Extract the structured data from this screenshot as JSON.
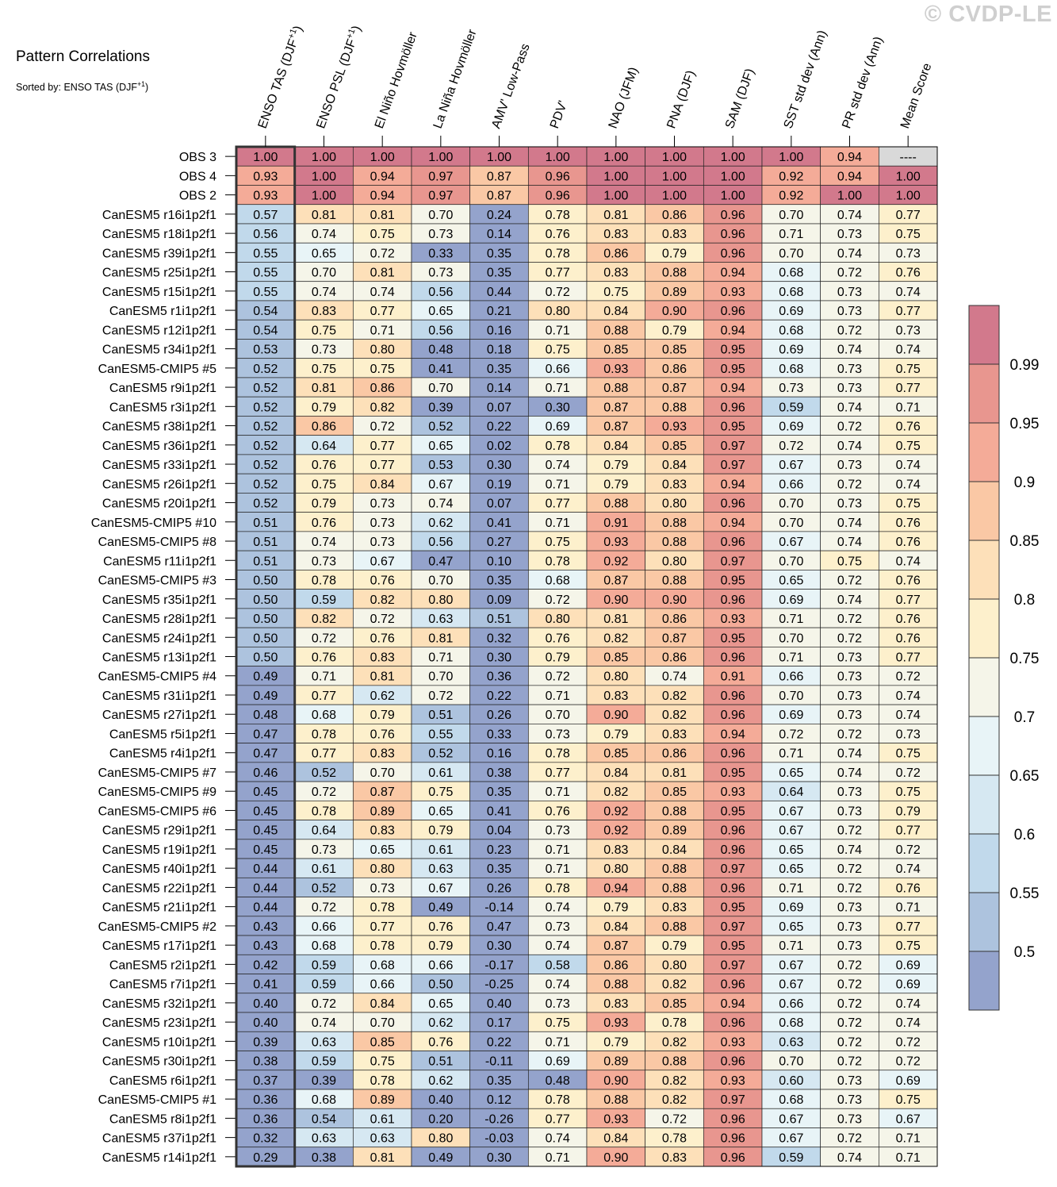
{
  "watermark": "© CVDP-LE",
  "chart_data": {
    "type": "heatmap",
    "title": "Pattern Correlations",
    "subtitle": "Sorted by: ENSO TAS (DJF+1)",
    "columns": [
      "ENSO TAS (DJF+1)",
      "ENSO PSL (DJF+1)",
      "El Niño Hovmöller",
      "La Niña Hovmöller",
      "AMV' Low-Pass",
      "PDV'",
      "NAO (JFM)",
      "PNA (DJF)",
      "SAM (DJF)",
      "SST std dev (Ann)",
      "PR std dev (Ann)",
      "Mean Score"
    ],
    "highlighted_column": "ENSO TAS (DJF+1)",
    "rows": [
      {
        "label": "OBS 3",
        "values": [
          "1.00",
          "1.00",
          "1.00",
          "1.00",
          "1.00",
          "1.00",
          "1.00",
          "1.00",
          "1.00",
          "1.00",
          "0.94",
          "----"
        ]
      },
      {
        "label": "OBS 4",
        "values": [
          "0.93",
          "1.00",
          "0.94",
          "0.97",
          "0.87",
          "0.96",
          "1.00",
          "1.00",
          "1.00",
          "0.92",
          "0.94",
          "1.00"
        ]
      },
      {
        "label": "OBS 2",
        "values": [
          "0.93",
          "1.00",
          "0.94",
          "0.97",
          "0.87",
          "0.96",
          "1.00",
          "1.00",
          "1.00",
          "0.92",
          "1.00",
          "1.00"
        ]
      },
      {
        "label": "CanESM5 r16i1p2f1",
        "values": [
          "0.57",
          "0.81",
          "0.81",
          "0.70",
          "0.24",
          "0.78",
          "0.81",
          "0.86",
          "0.96",
          "0.70",
          "0.74",
          "0.77"
        ]
      },
      {
        "label": "CanESM5 r18i1p2f1",
        "values": [
          "0.56",
          "0.74",
          "0.75",
          "0.73",
          "0.14",
          "0.76",
          "0.83",
          "0.83",
          "0.96",
          "0.71",
          "0.73",
          "0.75"
        ]
      },
      {
        "label": "CanESM5 r39i1p2f1",
        "values": [
          "0.55",
          "0.65",
          "0.72",
          "0.33",
          "0.35",
          "0.78",
          "0.86",
          "0.79",
          "0.96",
          "0.70",
          "0.74",
          "0.73"
        ]
      },
      {
        "label": "CanESM5 r25i1p2f1",
        "values": [
          "0.55",
          "0.70",
          "0.81",
          "0.73",
          "0.35",
          "0.77",
          "0.83",
          "0.88",
          "0.94",
          "0.68",
          "0.72",
          "0.76"
        ]
      },
      {
        "label": "CanESM5 r15i1p2f1",
        "values": [
          "0.55",
          "0.74",
          "0.74",
          "0.56",
          "0.44",
          "0.72",
          "0.75",
          "0.89",
          "0.93",
          "0.68",
          "0.73",
          "0.74"
        ]
      },
      {
        "label": "CanESM5 r1i1p2f1",
        "values": [
          "0.54",
          "0.83",
          "0.77",
          "0.65",
          "0.21",
          "0.80",
          "0.84",
          "0.90",
          "0.96",
          "0.69",
          "0.73",
          "0.77"
        ]
      },
      {
        "label": "CanESM5 r12i1p2f1",
        "values": [
          "0.54",
          "0.75",
          "0.71",
          "0.56",
          "0.16",
          "0.71",
          "0.88",
          "0.79",
          "0.94",
          "0.68",
          "0.72",
          "0.73"
        ]
      },
      {
        "label": "CanESM5 r34i1p2f1",
        "values": [
          "0.53",
          "0.73",
          "0.80",
          "0.48",
          "0.18",
          "0.75",
          "0.85",
          "0.85",
          "0.95",
          "0.69",
          "0.74",
          "0.74"
        ]
      },
      {
        "label": "CanESM5-CMIP5 #5",
        "values": [
          "0.52",
          "0.75",
          "0.75",
          "0.41",
          "0.35",
          "0.66",
          "0.93",
          "0.86",
          "0.95",
          "0.68",
          "0.73",
          "0.75"
        ]
      },
      {
        "label": "CanESM5 r9i1p2f1",
        "values": [
          "0.52",
          "0.81",
          "0.86",
          "0.70",
          "0.14",
          "0.71",
          "0.88",
          "0.87",
          "0.94",
          "0.73",
          "0.73",
          "0.77"
        ]
      },
      {
        "label": "CanESM5 r3i1p2f1",
        "values": [
          "0.52",
          "0.79",
          "0.82",
          "0.39",
          "0.07",
          "0.30",
          "0.87",
          "0.88",
          "0.96",
          "0.59",
          "0.74",
          "0.71"
        ]
      },
      {
        "label": "CanESM5 r38i1p2f1",
        "values": [
          "0.52",
          "0.86",
          "0.72",
          "0.52",
          "0.22",
          "0.69",
          "0.87",
          "0.93",
          "0.95",
          "0.69",
          "0.72",
          "0.76"
        ]
      },
      {
        "label": "CanESM5 r36i1p2f1",
        "values": [
          "0.52",
          "0.64",
          "0.77",
          "0.65",
          "0.02",
          "0.78",
          "0.84",
          "0.85",
          "0.97",
          "0.72",
          "0.74",
          "0.75"
        ]
      },
      {
        "label": "CanESM5 r33i1p2f1",
        "values": [
          "0.52",
          "0.76",
          "0.77",
          "0.53",
          "0.30",
          "0.74",
          "0.79",
          "0.84",
          "0.97",
          "0.67",
          "0.73",
          "0.74"
        ]
      },
      {
        "label": "CanESM5 r26i1p2f1",
        "values": [
          "0.52",
          "0.75",
          "0.84",
          "0.67",
          "0.19",
          "0.71",
          "0.79",
          "0.83",
          "0.94",
          "0.66",
          "0.72",
          "0.74"
        ]
      },
      {
        "label": "CanESM5 r20i1p2f1",
        "values": [
          "0.52",
          "0.79",
          "0.73",
          "0.74",
          "0.07",
          "0.77",
          "0.88",
          "0.80",
          "0.96",
          "0.70",
          "0.73",
          "0.75"
        ]
      },
      {
        "label": "CanESM5-CMIP5 #10",
        "values": [
          "0.51",
          "0.76",
          "0.73",
          "0.62",
          "0.41",
          "0.71",
          "0.91",
          "0.88",
          "0.94",
          "0.70",
          "0.74",
          "0.76"
        ]
      },
      {
        "label": "CanESM5-CMIP5 #8",
        "values": [
          "0.51",
          "0.74",
          "0.73",
          "0.56",
          "0.27",
          "0.75",
          "0.93",
          "0.88",
          "0.96",
          "0.67",
          "0.74",
          "0.76"
        ]
      },
      {
        "label": "CanESM5 r11i1p2f1",
        "values": [
          "0.51",
          "0.73",
          "0.67",
          "0.47",
          "0.10",
          "0.78",
          "0.92",
          "0.80",
          "0.97",
          "0.70",
          "0.75",
          "0.74"
        ]
      },
      {
        "label": "CanESM5-CMIP5 #3",
        "values": [
          "0.50",
          "0.78",
          "0.76",
          "0.70",
          "0.35",
          "0.68",
          "0.87",
          "0.88",
          "0.95",
          "0.65",
          "0.72",
          "0.76"
        ]
      },
      {
        "label": "CanESM5 r35i1p2f1",
        "values": [
          "0.50",
          "0.59",
          "0.82",
          "0.80",
          "0.09",
          "0.72",
          "0.90",
          "0.90",
          "0.96",
          "0.69",
          "0.74",
          "0.77"
        ]
      },
      {
        "label": "CanESM5 r28i1p2f1",
        "values": [
          "0.50",
          "0.82",
          "0.72",
          "0.63",
          "0.51",
          "0.80",
          "0.81",
          "0.86",
          "0.93",
          "0.71",
          "0.72",
          "0.76"
        ]
      },
      {
        "label": "CanESM5 r24i1p2f1",
        "values": [
          "0.50",
          "0.72",
          "0.76",
          "0.81",
          "0.32",
          "0.76",
          "0.82",
          "0.87",
          "0.95",
          "0.70",
          "0.72",
          "0.76"
        ]
      },
      {
        "label": "CanESM5 r13i1p2f1",
        "values": [
          "0.50",
          "0.76",
          "0.83",
          "0.71",
          "0.30",
          "0.79",
          "0.85",
          "0.86",
          "0.96",
          "0.71",
          "0.73",
          "0.77"
        ]
      },
      {
        "label": "CanESM5-CMIP5 #4",
        "values": [
          "0.49",
          "0.71",
          "0.81",
          "0.70",
          "0.36",
          "0.72",
          "0.80",
          "0.74",
          "0.91",
          "0.66",
          "0.73",
          "0.72"
        ]
      },
      {
        "label": "CanESM5 r31i1p2f1",
        "values": [
          "0.49",
          "0.77",
          "0.62",
          "0.72",
          "0.22",
          "0.71",
          "0.83",
          "0.82",
          "0.96",
          "0.70",
          "0.73",
          "0.74"
        ]
      },
      {
        "label": "CanESM5 r27i1p2f1",
        "values": [
          "0.48",
          "0.68",
          "0.79",
          "0.51",
          "0.26",
          "0.70",
          "0.90",
          "0.82",
          "0.96",
          "0.69",
          "0.73",
          "0.74"
        ]
      },
      {
        "label": "CanESM5 r5i1p2f1",
        "values": [
          "0.47",
          "0.78",
          "0.76",
          "0.55",
          "0.33",
          "0.73",
          "0.79",
          "0.83",
          "0.94",
          "0.72",
          "0.72",
          "0.73"
        ]
      },
      {
        "label": "CanESM5 r4i1p2f1",
        "values": [
          "0.47",
          "0.77",
          "0.83",
          "0.52",
          "0.16",
          "0.78",
          "0.85",
          "0.86",
          "0.96",
          "0.71",
          "0.74",
          "0.75"
        ]
      },
      {
        "label": "CanESM5-CMIP5 #7",
        "values": [
          "0.46",
          "0.52",
          "0.70",
          "0.61",
          "0.38",
          "0.77",
          "0.84",
          "0.81",
          "0.95",
          "0.65",
          "0.74",
          "0.72"
        ]
      },
      {
        "label": "CanESM5-CMIP5 #9",
        "values": [
          "0.45",
          "0.72",
          "0.87",
          "0.75",
          "0.35",
          "0.71",
          "0.82",
          "0.85",
          "0.93",
          "0.64",
          "0.73",
          "0.75"
        ]
      },
      {
        "label": "CanESM5-CMIP5 #6",
        "values": [
          "0.45",
          "0.78",
          "0.89",
          "0.65",
          "0.41",
          "0.76",
          "0.92",
          "0.88",
          "0.95",
          "0.67",
          "0.73",
          "0.79"
        ]
      },
      {
        "label": "CanESM5 r29i1p2f1",
        "values": [
          "0.45",
          "0.64",
          "0.83",
          "0.79",
          "0.04",
          "0.73",
          "0.92",
          "0.89",
          "0.96",
          "0.67",
          "0.72",
          "0.77"
        ]
      },
      {
        "label": "CanESM5 r19i1p2f1",
        "values": [
          "0.45",
          "0.73",
          "0.65",
          "0.61",
          "0.23",
          "0.71",
          "0.83",
          "0.84",
          "0.96",
          "0.65",
          "0.74",
          "0.72"
        ]
      },
      {
        "label": "CanESM5 r40i1p2f1",
        "values": [
          "0.44",
          "0.61",
          "0.80",
          "0.63",
          "0.35",
          "0.71",
          "0.80",
          "0.88",
          "0.97",
          "0.65",
          "0.72",
          "0.74"
        ]
      },
      {
        "label": "CanESM5 r22i1p2f1",
        "values": [
          "0.44",
          "0.52",
          "0.73",
          "0.67",
          "0.26",
          "0.78",
          "0.94",
          "0.88",
          "0.96",
          "0.71",
          "0.72",
          "0.76"
        ]
      },
      {
        "label": "CanESM5 r21i1p2f1",
        "values": [
          "0.44",
          "0.72",
          "0.78",
          "0.49",
          "-0.14",
          "0.74",
          "0.79",
          "0.83",
          "0.95",
          "0.69",
          "0.73",
          "0.71"
        ]
      },
      {
        "label": "CanESM5-CMIP5 #2",
        "values": [
          "0.43",
          "0.66",
          "0.77",
          "0.76",
          "0.47",
          "0.73",
          "0.84",
          "0.88",
          "0.97",
          "0.65",
          "0.73",
          "0.77"
        ]
      },
      {
        "label": "CanESM5 r17i1p2f1",
        "values": [
          "0.43",
          "0.68",
          "0.78",
          "0.79",
          "0.30",
          "0.74",
          "0.87",
          "0.79",
          "0.95",
          "0.71",
          "0.73",
          "0.75"
        ]
      },
      {
        "label": "CanESM5 r2i1p2f1",
        "values": [
          "0.42",
          "0.59",
          "0.68",
          "0.66",
          "-0.17",
          "0.58",
          "0.86",
          "0.80",
          "0.97",
          "0.67",
          "0.72",
          "0.69"
        ]
      },
      {
        "label": "CanESM5 r7i1p2f1",
        "values": [
          "0.41",
          "0.59",
          "0.66",
          "0.50",
          "-0.25",
          "0.74",
          "0.88",
          "0.82",
          "0.96",
          "0.67",
          "0.72",
          "0.69"
        ]
      },
      {
        "label": "CanESM5 r32i1p2f1",
        "values": [
          "0.40",
          "0.72",
          "0.84",
          "0.65",
          "0.40",
          "0.73",
          "0.83",
          "0.85",
          "0.94",
          "0.66",
          "0.72",
          "0.74"
        ]
      },
      {
        "label": "CanESM5 r23i1p2f1",
        "values": [
          "0.40",
          "0.74",
          "0.70",
          "0.62",
          "0.17",
          "0.75",
          "0.93",
          "0.78",
          "0.96",
          "0.68",
          "0.72",
          "0.74"
        ]
      },
      {
        "label": "CanESM5 r10i1p2f1",
        "values": [
          "0.39",
          "0.63",
          "0.85",
          "0.76",
          "0.22",
          "0.71",
          "0.79",
          "0.82",
          "0.93",
          "0.63",
          "0.72",
          "0.72"
        ]
      },
      {
        "label": "CanESM5 r30i1p2f1",
        "values": [
          "0.38",
          "0.59",
          "0.75",
          "0.51",
          "-0.11",
          "0.69",
          "0.89",
          "0.88",
          "0.96",
          "0.70",
          "0.72",
          "0.72"
        ]
      },
      {
        "label": "CanESM5 r6i1p2f1",
        "values": [
          "0.37",
          "0.39",
          "0.78",
          "0.62",
          "0.35",
          "0.48",
          "0.90",
          "0.82",
          "0.93",
          "0.60",
          "0.73",
          "0.69"
        ]
      },
      {
        "label": "CanESM5-CMIP5 #1",
        "values": [
          "0.36",
          "0.68",
          "0.89",
          "0.40",
          "0.12",
          "0.78",
          "0.88",
          "0.82",
          "0.97",
          "0.68",
          "0.73",
          "0.75"
        ]
      },
      {
        "label": "CanESM5 r8i1p2f1",
        "values": [
          "0.36",
          "0.54",
          "0.61",
          "0.20",
          "-0.26",
          "0.77",
          "0.93",
          "0.72",
          "0.96",
          "0.67",
          "0.73",
          "0.67"
        ]
      },
      {
        "label": "CanESM5 r37i1p2f1",
        "values": [
          "0.32",
          "0.63",
          "0.63",
          "0.80",
          "-0.03",
          "0.74",
          "0.84",
          "0.78",
          "0.96",
          "0.67",
          "0.72",
          "0.71"
        ]
      },
      {
        "label": "CanESM5 r14i1p2f1",
        "values": [
          "0.29",
          "0.38",
          "0.81",
          "0.49",
          "0.30",
          "0.71",
          "0.90",
          "0.83",
          "0.96",
          "0.59",
          "0.74",
          "0.71"
        ]
      }
    ],
    "colorbar": {
      "ticks": [
        0.5,
        0.55,
        0.6,
        0.65,
        0.7,
        0.75,
        0.8,
        0.85,
        0.9,
        0.95,
        0.99
      ],
      "tick_labels": [
        "0.5",
        "0.55",
        "0.6",
        "0.65",
        "0.7",
        "0.75",
        "0.8",
        "0.85",
        "0.9",
        "0.95",
        "0.99"
      ],
      "bin_edges": [
        0.5,
        0.55,
        0.6,
        0.65,
        0.7,
        0.75,
        0.8,
        0.85,
        0.9,
        0.95,
        0.99
      ],
      "colors": [
        "#94a3cc",
        "#adc3de",
        "#c1d9eb",
        "#d6e8f2",
        "#e8f4f7",
        "#f5f5e9",
        "#fdf0cc",
        "#fde0b9",
        "#fac8a5",
        "#f4ab98",
        "#e8968f",
        "#d2798c"
      ],
      "missing_color": "#d9d9d9"
    }
  }
}
